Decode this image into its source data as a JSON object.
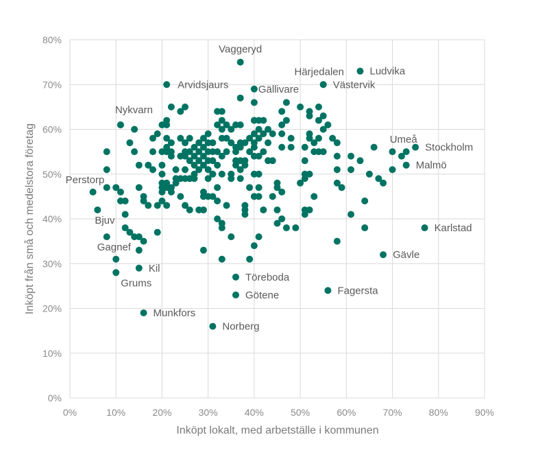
{
  "chart_data": {
    "type": "scatter",
    "title": "",
    "xlabel": "Inköpt lokalt, med arbetställe i kommunen",
    "ylabel": "Inköpt från små och medelstora företag",
    "xlim": [
      0,
      90
    ],
    "ylim": [
      0,
      80
    ],
    "x_ticks": [
      0,
      10,
      20,
      30,
      40,
      50,
      60,
      70,
      80,
      90
    ],
    "y_ticks": [
      0,
      10,
      20,
      30,
      40,
      50,
      60,
      70,
      80
    ],
    "x_tick_labels": [
      "0%",
      "10%",
      "20%",
      "30%",
      "40%",
      "50%",
      "60%",
      "70%",
      "80%",
      "90%"
    ],
    "y_tick_labels": [
      "0%",
      "10%",
      "20%",
      "30%",
      "40%",
      "50%",
      "60%",
      "70%",
      "80%"
    ],
    "grid": true,
    "legend": "none",
    "colors": {
      "marker": "#007362",
      "grid": "#d9d9d9",
      "tick_text": "#8a8a8a",
      "axis_title": "#7a7a7a",
      "label_text": "#5a5a5a"
    },
    "labeled_points": [
      {
        "name": "Vaggeryd",
        "x": 37,
        "y": 75
      },
      {
        "name": "Ludvika",
        "x": 63,
        "y": 73
      },
      {
        "name": "Härjedalen",
        "x": 55,
        "y": 70
      },
      {
        "name": "Västervik",
        "x": 55,
        "y": 70
      },
      {
        "name": "Arvidsjaurs",
        "x": 21,
        "y": 70
      },
      {
        "name": "Gällivare",
        "x": 40,
        "y": 69
      },
      {
        "name": "Nykvarn",
        "x": 11,
        "y": 61
      },
      {
        "name": "Umeå",
        "x": 73,
        "y": 55
      },
      {
        "name": "Stockholm",
        "x": 75,
        "y": 56
      },
      {
        "name": "Malmö",
        "x": 73,
        "y": 52
      },
      {
        "name": "Perstorp",
        "x": 5,
        "y": 46
      },
      {
        "name": "Bjuv",
        "x": 6,
        "y": 42
      },
      {
        "name": "Karlstad",
        "x": 77,
        "y": 38
      },
      {
        "name": "Gagnef",
        "x": 8,
        "y": 36
      },
      {
        "name": "Gävle",
        "x": 68,
        "y": 32
      },
      {
        "name": "Kil",
        "x": 15,
        "y": 29
      },
      {
        "name": "Grums",
        "x": 10,
        "y": 28
      },
      {
        "name": "Töreboda",
        "x": 36,
        "y": 27
      },
      {
        "name": "Götene",
        "x": 36,
        "y": 23
      },
      {
        "name": "Fagersta",
        "x": 56,
        "y": 24
      },
      {
        "name": "Munkfors",
        "x": 16,
        "y": 19
      },
      {
        "name": "Norberg",
        "x": 31,
        "y": 16
      }
    ],
    "points": [
      [
        8,
        55
      ],
      [
        8,
        51
      ],
      [
        8,
        47
      ],
      [
        10,
        47
      ],
      [
        11,
        44
      ],
      [
        11,
        46
      ],
      [
        12,
        44
      ],
      [
        12,
        41
      ],
      [
        12,
        38
      ],
      [
        13,
        37
      ],
      [
        14,
        36
      ],
      [
        15,
        36
      ],
      [
        15,
        33
      ],
      [
        16,
        35
      ],
      [
        10,
        31
      ],
      [
        11,
        61
      ],
      [
        13,
        57
      ],
      [
        14,
        60
      ],
      [
        14,
        55
      ],
      [
        15,
        52
      ],
      [
        15,
        47
      ],
      [
        16,
        45
      ],
      [
        16,
        44
      ],
      [
        17,
        43
      ],
      [
        17,
        52
      ],
      [
        18,
        55
      ],
      [
        18,
        51
      ],
      [
        18,
        58
      ],
      [
        19,
        43
      ],
      [
        19,
        37
      ],
      [
        19,
        59
      ],
      [
        20,
        61
      ],
      [
        20,
        55
      ],
      [
        20,
        50
      ],
      [
        20,
        48
      ],
      [
        20,
        47
      ],
      [
        20,
        46
      ],
      [
        20,
        44
      ],
      [
        20,
        52
      ],
      [
        21,
        62
      ],
      [
        21,
        61
      ],
      [
        21,
        58
      ],
      [
        21,
        56
      ],
      [
        21,
        55
      ],
      [
        21,
        48
      ],
      [
        21,
        47
      ],
      [
        21,
        43
      ],
      [
        22,
        65
      ],
      [
        22,
        57
      ],
      [
        22,
        55
      ],
      [
        22,
        54
      ],
      [
        22,
        47
      ],
      [
        22,
        46
      ],
      [
        23,
        51
      ],
      [
        23,
        49
      ],
      [
        23,
        48
      ],
      [
        24,
        64
      ],
      [
        24,
        58
      ],
      [
        24,
        54
      ],
      [
        24,
        49
      ],
      [
        24,
        45
      ],
      [
        25,
        65
      ],
      [
        25,
        57
      ],
      [
        25,
        55
      ],
      [
        25,
        54
      ],
      [
        25,
        51
      ],
      [
        25,
        49
      ],
      [
        25,
        43
      ],
      [
        26,
        58
      ],
      [
        26,
        55
      ],
      [
        26,
        53
      ],
      [
        26,
        49
      ],
      [
        26,
        42
      ],
      [
        27,
        54
      ],
      [
        27,
        52
      ],
      [
        27,
        50
      ],
      [
        27,
        49
      ],
      [
        27,
        56
      ],
      [
        28,
        57
      ],
      [
        28,
        55
      ],
      [
        28,
        53
      ],
      [
        28,
        51
      ],
      [
        28,
        42
      ],
      [
        29,
        58
      ],
      [
        29,
        56
      ],
      [
        29,
        54
      ],
      [
        29,
        52
      ],
      [
        29,
        46
      ],
      [
        29,
        45
      ],
      [
        29,
        42
      ],
      [
        29,
        33
      ],
      [
        30,
        59
      ],
      [
        30,
        57
      ],
      [
        30,
        55
      ],
      [
        30,
        53
      ],
      [
        30,
        51
      ],
      [
        30,
        49
      ],
      [
        30,
        45
      ],
      [
        31,
        57
      ],
      [
        31,
        55
      ],
      [
        31,
        53
      ],
      [
        31,
        50
      ],
      [
        31,
        45
      ],
      [
        32,
        64
      ],
      [
        32,
        61
      ],
      [
        32,
        55
      ],
      [
        32,
        52
      ],
      [
        32,
        47
      ],
      [
        32,
        44
      ],
      [
        32,
        40
      ],
      [
        33,
        64
      ],
      [
        33,
        62
      ],
      [
        33,
        60
      ],
      [
        33,
        58
      ],
      [
        33,
        54
      ],
      [
        33,
        50
      ],
      [
        33,
        39
      ],
      [
        33,
        38
      ],
      [
        33,
        31
      ],
      [
        34,
        61
      ],
      [
        34,
        58
      ],
      [
        34,
        55
      ],
      [
        34,
        43
      ],
      [
        35,
        60
      ],
      [
        35,
        57
      ],
      [
        35,
        50
      ],
      [
        35,
        49
      ],
      [
        35,
        36
      ],
      [
        36,
        61
      ],
      [
        36,
        56
      ],
      [
        36,
        55
      ],
      [
        36,
        53
      ],
      [
        36,
        52
      ],
      [
        37,
        67
      ],
      [
        37,
        61
      ],
      [
        37,
        57
      ],
      [
        37,
        56
      ],
      [
        37,
        53
      ],
      [
        37,
        51
      ],
      [
        37,
        49
      ],
      [
        38,
        57
      ],
      [
        38,
        53
      ],
      [
        38,
        52
      ],
      [
        38,
        43
      ],
      [
        38,
        42
      ],
      [
        38,
        41
      ],
      [
        39,
        31
      ],
      [
        39,
        58
      ],
      [
        39,
        55
      ],
      [
        39,
        47
      ],
      [
        40,
        62
      ],
      [
        40,
        66
      ],
      [
        40,
        59
      ],
      [
        40,
        57
      ],
      [
        40,
        56
      ],
      [
        40,
        54
      ],
      [
        40,
        50
      ],
      [
        40,
        45
      ],
      [
        40,
        34
      ],
      [
        41,
        62
      ],
      [
        41,
        60
      ],
      [
        41,
        58
      ],
      [
        41,
        54
      ],
      [
        41,
        50
      ],
      [
        41,
        47
      ],
      [
        41,
        45
      ],
      [
        41,
        36
      ],
      [
        42,
        62
      ],
      [
        42,
        59
      ],
      [
        42,
        55
      ],
      [
        42,
        42
      ],
      [
        43,
        60
      ],
      [
        43,
        57
      ],
      [
        43,
        53
      ],
      [
        44,
        59
      ],
      [
        44,
        53
      ],
      [
        44,
        45
      ],
      [
        45,
        48
      ],
      [
        45,
        47
      ],
      [
        45,
        42
      ],
      [
        45,
        39
      ],
      [
        46,
        64
      ],
      [
        46,
        61
      ],
      [
        46,
        59
      ],
      [
        46,
        56
      ],
      [
        46,
        46
      ],
      [
        46,
        40
      ],
      [
        47,
        66
      ],
      [
        47,
        62
      ],
      [
        47,
        38
      ],
      [
        48,
        58
      ],
      [
        48,
        56
      ],
      [
        49,
        38
      ],
      [
        50,
        65
      ],
      [
        50,
        48
      ],
      [
        51,
        56
      ],
      [
        51,
        53
      ],
      [
        51,
        50
      ],
      [
        51,
        49
      ],
      [
        51,
        42
      ],
      [
        51,
        41
      ],
      [
        52,
        64
      ],
      [
        52,
        63
      ],
      [
        52,
        59
      ],
      [
        52,
        58
      ],
      [
        52,
        50
      ],
      [
        52,
        42
      ],
      [
        53,
        57
      ],
      [
        53,
        55
      ],
      [
        53,
        45
      ],
      [
        54,
        65
      ],
      [
        54,
        62
      ],
      [
        54,
        58
      ],
      [
        54,
        55
      ],
      [
        55,
        63
      ],
      [
        55,
        60
      ],
      [
        55,
        55
      ],
      [
        56,
        61
      ],
      [
        57,
        58
      ],
      [
        58,
        57
      ],
      [
        58,
        54
      ],
      [
        58,
        51
      ],
      [
        58,
        48
      ],
      [
        58,
        35
      ],
      [
        59,
        47
      ],
      [
        61,
        54
      ],
      [
        61,
        51
      ],
      [
        61,
        41
      ],
      [
        63,
        53
      ],
      [
        64,
        44
      ],
      [
        64,
        38
      ],
      [
        65,
        50
      ],
      [
        66,
        56
      ],
      [
        67,
        49
      ],
      [
        68,
        48
      ],
      [
        70,
        55
      ],
      [
        70,
        51
      ],
      [
        72,
        54
      ]
    ]
  }
}
